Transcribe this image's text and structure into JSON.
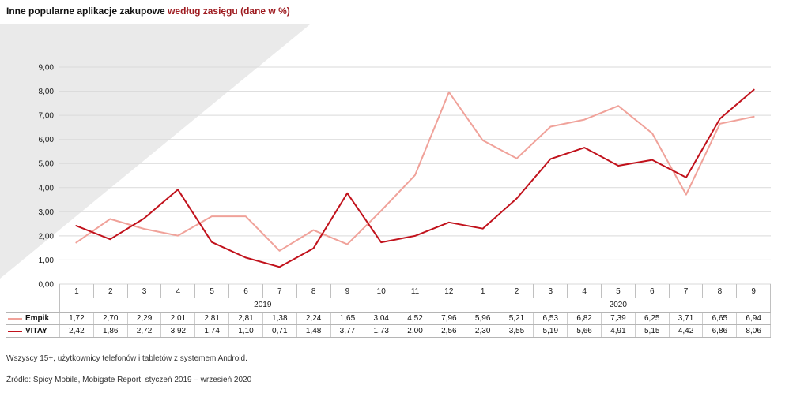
{
  "title": {
    "main": "Inne popularne aplikacje zakupowe",
    "sub": "według zasięgu (dane w %)"
  },
  "footer": {
    "note": "Wszyscy 15+, użytkownicy telefonów i tabletów z systemem Android.",
    "source": "Źródło: Spicy Mobile, Mobigate Report, styczeń 2019 – wrzesień 2020"
  },
  "colors": {
    "accent_red": "#9e1b20",
    "empik_line": "#f0a29a",
    "vitay_line": "#c1121c",
    "grid": "#d9d9d9",
    "background_wedge": "#eaeaea"
  },
  "chart_data": {
    "type": "line",
    "title": "Inne popularne aplikacje zakupowe według zasięgu (dane w %)",
    "xlabel": "",
    "ylabel": "",
    "ylim": [
      0,
      9
    ],
    "grid": true,
    "legend_position": "table-left",
    "y_ticks": [
      "0,00",
      "1,00",
      "2,00",
      "3,00",
      "4,00",
      "5,00",
      "6,00",
      "7,00",
      "8,00",
      "9,00"
    ],
    "x_months": [
      "1",
      "2",
      "3",
      "4",
      "5",
      "6",
      "7",
      "8",
      "9",
      "10",
      "11",
      "12",
      "1",
      "2",
      "3",
      "4",
      "5",
      "6",
      "7",
      "8",
      "9"
    ],
    "year_groups": [
      {
        "label": "2019",
        "count": 12
      },
      {
        "label": "2020",
        "count": 9
      }
    ],
    "series": [
      {
        "name": "Empik",
        "color": "#f0a29a",
        "values": [
          1.72,
          2.7,
          2.29,
          2.01,
          2.81,
          2.81,
          1.38,
          2.24,
          1.65,
          3.04,
          4.52,
          7.96,
          5.96,
          5.21,
          6.53,
          6.82,
          7.39,
          6.25,
          3.71,
          6.65,
          6.94
        ],
        "display": [
          "1,72",
          "2,70",
          "2,29",
          "2,01",
          "2,81",
          "2,81",
          "1,38",
          "2,24",
          "1,65",
          "3,04",
          "4,52",
          "7,96",
          "5,96",
          "5,21",
          "6,53",
          "6,82",
          "7,39",
          "6,25",
          "3,71",
          "6,65",
          "6,94"
        ]
      },
      {
        "name": "VITAY",
        "color": "#c1121c",
        "values": [
          2.42,
          1.86,
          2.72,
          3.92,
          1.74,
          1.1,
          0.71,
          1.48,
          3.77,
          1.73,
          2.0,
          2.56,
          2.3,
          3.55,
          5.19,
          5.66,
          4.91,
          5.15,
          4.42,
          6.86,
          8.06
        ],
        "display": [
          "2,42",
          "1,86",
          "2,72",
          "3,92",
          "1,74",
          "1,10",
          "0,71",
          "1,48",
          "3,77",
          "1,73",
          "2,00",
          "2,56",
          "2,30",
          "3,55",
          "5,19",
          "5,66",
          "4,91",
          "5,15",
          "4,42",
          "6,86",
          "8,06"
        ]
      }
    ]
  }
}
